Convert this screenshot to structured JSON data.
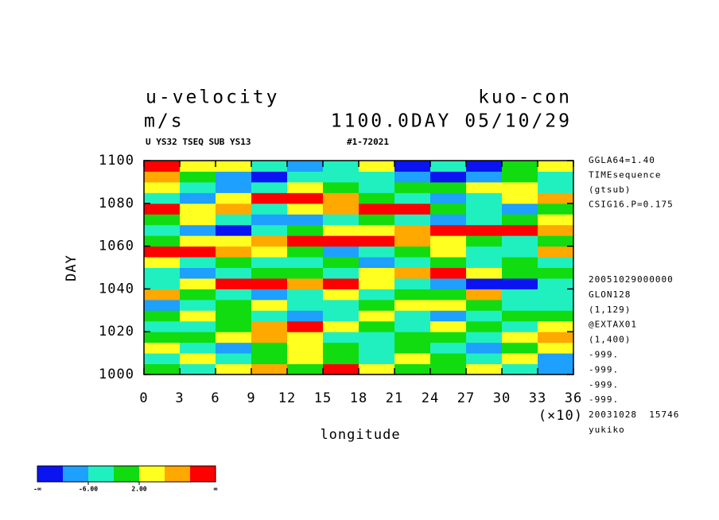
{
  "chart_data": {
    "type": "heatmap",
    "title": "u-velocity",
    "title_right": "kuo-con",
    "unit": "m/s",
    "time_label": "1100.0DAY 05/10/29",
    "subtitle_left": "U YS32 TSEQ SUB YS13",
    "subtitle_right": "#1-72021",
    "x_label": "longitude",
    "x_scale_label": "(×10)",
    "y_label": "DAY",
    "xlim": [
      0,
      36
    ],
    "xticks": [
      0,
      3,
      6,
      9,
      12,
      15,
      18,
      21,
      24,
      27,
      30,
      33,
      36
    ],
    "ylim": [
      1000,
      1100
    ],
    "yticks": [
      1000,
      1020,
      1040,
      1060,
      1080,
      1100
    ],
    "x": [
      1.5,
      4.5,
      7.5,
      10.5,
      13.5,
      16.5,
      19.5,
      22.5,
      25.5,
      28.5,
      31.5,
      34.5
    ],
    "y": [
      1002.5,
      1007.5,
      1012.5,
      1017.5,
      1022.5,
      1027.5,
      1032.5,
      1037.5,
      1042.5,
      1047.5,
      1052.5,
      1057.5,
      1062.5,
      1067.5,
      1072.5,
      1077.5,
      1082.5,
      1087.5,
      1092.5,
      1097.5
    ],
    "z": [
      [
        0,
        -3,
        4,
        7,
        -1,
        11,
        3,
        -2,
        1,
        5,
        -4,
        -8
      ],
      [
        -4,
        2,
        -6,
        1,
        5,
        0,
        -3,
        3,
        -1,
        -5,
        2,
        -7
      ],
      [
        3,
        -5,
        -8,
        -2,
        4,
        -1,
        -6,
        1,
        -3,
        -7,
        -2,
        4
      ],
      [
        -2,
        1,
        5,
        9,
        2,
        -3,
        -5,
        -1,
        0,
        -4,
        3,
        6
      ],
      [
        -6,
        -3,
        -1,
        8,
        11,
        5,
        -2,
        -4,
        3,
        -1,
        -5,
        2
      ],
      [
        1,
        4,
        -2,
        -5,
        -8,
        -3,
        2,
        -6,
        -9,
        -3,
        1,
        -2
      ],
      [
        -7,
        -4,
        1,
        3,
        -6,
        -3,
        -1,
        3,
        5,
        -2,
        -6,
        -3
      ],
      [
        6,
        -2,
        -4,
        -9,
        -3,
        4,
        -5,
        -2,
        -1,
        7,
        -3,
        -5
      ],
      [
        -3,
        2,
        11,
        10,
        7,
        12,
        3,
        -4,
        -8,
        -12,
        -11,
        -6
      ],
      [
        -5,
        -8,
        -3,
        1,
        -2,
        -6,
        4,
        6,
        12,
        2,
        -1,
        1
      ],
      [
        3,
        -6,
        -1,
        -4,
        -3,
        -2,
        -8,
        -3,
        -1,
        -5,
        -2,
        -3
      ],
      [
        12,
        11,
        8,
        3,
        -2,
        -7,
        -4,
        -1,
        2,
        -3,
        -6,
        7
      ],
      [
        -1,
        2,
        5,
        9,
        12,
        13,
        11,
        8,
        4,
        1,
        -4,
        -2
      ],
      [
        -6,
        -8,
        -11,
        -4,
        -1,
        3,
        5,
        7,
        11,
        12,
        13,
        9
      ],
      [
        -2,
        3,
        -6,
        -9,
        -7,
        -3,
        -2,
        -5,
        -8,
        -3,
        1,
        4
      ],
      [
        11,
        4,
        6,
        -3,
        2,
        7,
        11,
        12,
        -1,
        -4,
        -7,
        -2
      ],
      [
        -4,
        -9,
        5,
        11,
        13,
        8,
        -2,
        -6,
        -10,
        -3,
        3,
        8
      ],
      [
        2,
        -3,
        -10,
        -6,
        3,
        -1,
        -5,
        -2,
        1,
        5,
        4,
        -4
      ],
      [
        6,
        -2,
        -7,
        -12,
        -5,
        -3,
        -6,
        -9,
        -11,
        -7,
        1,
        -3
      ],
      [
        11,
        5,
        2,
        -3,
        -9,
        -6,
        4,
        -11,
        -6,
        -12,
        -2,
        3
      ]
    ],
    "levels": [
      -10,
      -6,
      -2,
      2,
      6,
      10
    ],
    "colors": [
      "#0a14f0",
      "#1ea0ff",
      "#20f0c0",
      "#10dc10",
      "#ffff20",
      "#ffa800",
      "#ff0000"
    ],
    "colorbar_end_labels": [
      "-∞",
      "∞"
    ],
    "colorbar_ticks": [
      {
        "value": -6,
        "label": "-6.00"
      },
      {
        "value": 2,
        "label": "2.00"
      }
    ],
    "annotations": [
      "GGLA64=1.40",
      "TIMEsequence",
      "(gtsub)",
      "CSIG16.P=0.175",
      "20051029000000",
      "GLON128",
      "(1,129)",
      "@EXTAX01",
      "(1,400)",
      "-999.",
      "-999.",
      "-999.",
      "-999.",
      "20031028  15746",
      "yukiko"
    ]
  }
}
